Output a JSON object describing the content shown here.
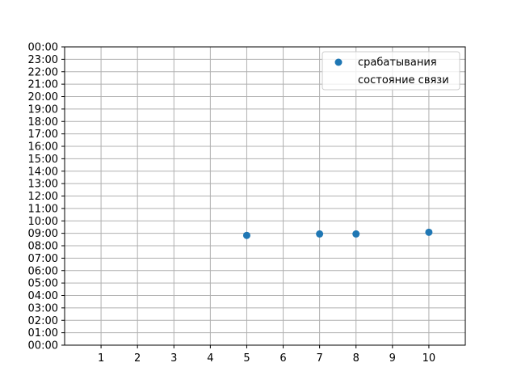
{
  "chart_data": {
    "type": "scatter",
    "title": "",
    "xlabel": "",
    "ylabel": "",
    "xlim": [
      0,
      11
    ],
    "ylim_hours": [
      0,
      24
    ],
    "grid": true,
    "legend_placement": "top-right",
    "x_ticks": [
      "1",
      "2",
      "3",
      "4",
      "5",
      "6",
      "7",
      "8",
      "9",
      "10"
    ],
    "y_ticks": [
      "00:00",
      "01:00",
      "02:00",
      "03:00",
      "04:00",
      "05:00",
      "06:00",
      "07:00",
      "08:00",
      "09:00",
      "10:00",
      "11:00",
      "12:00",
      "13:00",
      "14:00",
      "15:00",
      "16:00",
      "17:00",
      "18:00",
      "19:00",
      "20:00",
      "21:00",
      "22:00",
      "23:00",
      "00:00"
    ],
    "series": [
      {
        "name": "срабатывания",
        "color": "#1f77b4",
        "x": [
          5,
          7,
          8,
          10
        ],
        "y": [
          "08:50",
          "08:57",
          "08:57",
          "09:05"
        ]
      },
      {
        "name": "состояние связи",
        "color": "#ffffff",
        "x": [],
        "y": []
      }
    ]
  }
}
